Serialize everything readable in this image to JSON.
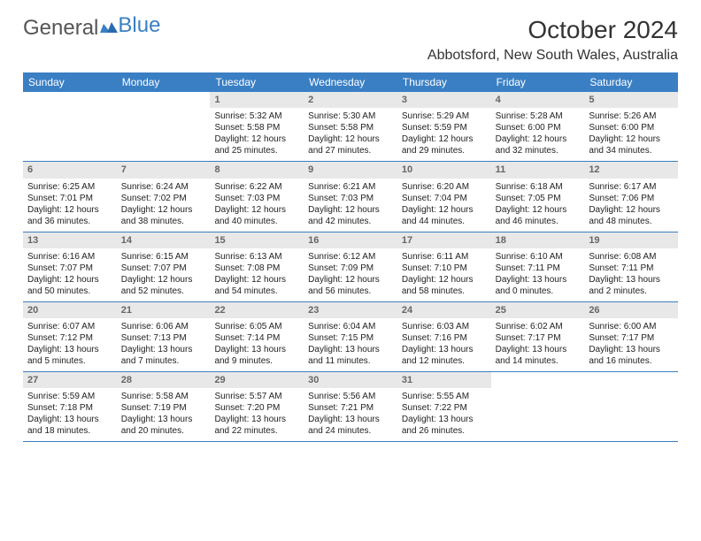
{
  "logo": {
    "text1": "General",
    "text2": "Blue"
  },
  "title": "October 2024",
  "location": "Abbotsford, New South Wales, Australia",
  "colors": {
    "header_bg": "#3a7fc4",
    "header_text": "#ffffff",
    "daynum_bg": "#e8e8e8",
    "daynum_text": "#666666",
    "body_text": "#222222",
    "border": "#3a7fc4",
    "logo_gray": "#555555",
    "logo_blue": "#3a7fc4"
  },
  "dow": [
    "Sunday",
    "Monday",
    "Tuesday",
    "Wednesday",
    "Thursday",
    "Friday",
    "Saturday"
  ],
  "weeks": [
    [
      {
        "n": "",
        "l1": "",
        "l2": "",
        "l3": "",
        "l4": ""
      },
      {
        "n": "",
        "l1": "",
        "l2": "",
        "l3": "",
        "l4": ""
      },
      {
        "n": "1",
        "l1": "Sunrise: 5:32 AM",
        "l2": "Sunset: 5:58 PM",
        "l3": "Daylight: 12 hours",
        "l4": "and 25 minutes."
      },
      {
        "n": "2",
        "l1": "Sunrise: 5:30 AM",
        "l2": "Sunset: 5:58 PM",
        "l3": "Daylight: 12 hours",
        "l4": "and 27 minutes."
      },
      {
        "n": "3",
        "l1": "Sunrise: 5:29 AM",
        "l2": "Sunset: 5:59 PM",
        "l3": "Daylight: 12 hours",
        "l4": "and 29 minutes."
      },
      {
        "n": "4",
        "l1": "Sunrise: 5:28 AM",
        "l2": "Sunset: 6:00 PM",
        "l3": "Daylight: 12 hours",
        "l4": "and 32 minutes."
      },
      {
        "n": "5",
        "l1": "Sunrise: 5:26 AM",
        "l2": "Sunset: 6:00 PM",
        "l3": "Daylight: 12 hours",
        "l4": "and 34 minutes."
      }
    ],
    [
      {
        "n": "6",
        "l1": "Sunrise: 6:25 AM",
        "l2": "Sunset: 7:01 PM",
        "l3": "Daylight: 12 hours",
        "l4": "and 36 minutes."
      },
      {
        "n": "7",
        "l1": "Sunrise: 6:24 AM",
        "l2": "Sunset: 7:02 PM",
        "l3": "Daylight: 12 hours",
        "l4": "and 38 minutes."
      },
      {
        "n": "8",
        "l1": "Sunrise: 6:22 AM",
        "l2": "Sunset: 7:03 PM",
        "l3": "Daylight: 12 hours",
        "l4": "and 40 minutes."
      },
      {
        "n": "9",
        "l1": "Sunrise: 6:21 AM",
        "l2": "Sunset: 7:03 PM",
        "l3": "Daylight: 12 hours",
        "l4": "and 42 minutes."
      },
      {
        "n": "10",
        "l1": "Sunrise: 6:20 AM",
        "l2": "Sunset: 7:04 PM",
        "l3": "Daylight: 12 hours",
        "l4": "and 44 minutes."
      },
      {
        "n": "11",
        "l1": "Sunrise: 6:18 AM",
        "l2": "Sunset: 7:05 PM",
        "l3": "Daylight: 12 hours",
        "l4": "and 46 minutes."
      },
      {
        "n": "12",
        "l1": "Sunrise: 6:17 AM",
        "l2": "Sunset: 7:06 PM",
        "l3": "Daylight: 12 hours",
        "l4": "and 48 minutes."
      }
    ],
    [
      {
        "n": "13",
        "l1": "Sunrise: 6:16 AM",
        "l2": "Sunset: 7:07 PM",
        "l3": "Daylight: 12 hours",
        "l4": "and 50 minutes."
      },
      {
        "n": "14",
        "l1": "Sunrise: 6:15 AM",
        "l2": "Sunset: 7:07 PM",
        "l3": "Daylight: 12 hours",
        "l4": "and 52 minutes."
      },
      {
        "n": "15",
        "l1": "Sunrise: 6:13 AM",
        "l2": "Sunset: 7:08 PM",
        "l3": "Daylight: 12 hours",
        "l4": "and 54 minutes."
      },
      {
        "n": "16",
        "l1": "Sunrise: 6:12 AM",
        "l2": "Sunset: 7:09 PM",
        "l3": "Daylight: 12 hours",
        "l4": "and 56 minutes."
      },
      {
        "n": "17",
        "l1": "Sunrise: 6:11 AM",
        "l2": "Sunset: 7:10 PM",
        "l3": "Daylight: 12 hours",
        "l4": "and 58 minutes."
      },
      {
        "n": "18",
        "l1": "Sunrise: 6:10 AM",
        "l2": "Sunset: 7:11 PM",
        "l3": "Daylight: 13 hours",
        "l4": "and 0 minutes."
      },
      {
        "n": "19",
        "l1": "Sunrise: 6:08 AM",
        "l2": "Sunset: 7:11 PM",
        "l3": "Daylight: 13 hours",
        "l4": "and 2 minutes."
      }
    ],
    [
      {
        "n": "20",
        "l1": "Sunrise: 6:07 AM",
        "l2": "Sunset: 7:12 PM",
        "l3": "Daylight: 13 hours",
        "l4": "and 5 minutes."
      },
      {
        "n": "21",
        "l1": "Sunrise: 6:06 AM",
        "l2": "Sunset: 7:13 PM",
        "l3": "Daylight: 13 hours",
        "l4": "and 7 minutes."
      },
      {
        "n": "22",
        "l1": "Sunrise: 6:05 AM",
        "l2": "Sunset: 7:14 PM",
        "l3": "Daylight: 13 hours",
        "l4": "and 9 minutes."
      },
      {
        "n": "23",
        "l1": "Sunrise: 6:04 AM",
        "l2": "Sunset: 7:15 PM",
        "l3": "Daylight: 13 hours",
        "l4": "and 11 minutes."
      },
      {
        "n": "24",
        "l1": "Sunrise: 6:03 AM",
        "l2": "Sunset: 7:16 PM",
        "l3": "Daylight: 13 hours",
        "l4": "and 12 minutes."
      },
      {
        "n": "25",
        "l1": "Sunrise: 6:02 AM",
        "l2": "Sunset: 7:17 PM",
        "l3": "Daylight: 13 hours",
        "l4": "and 14 minutes."
      },
      {
        "n": "26",
        "l1": "Sunrise: 6:00 AM",
        "l2": "Sunset: 7:17 PM",
        "l3": "Daylight: 13 hours",
        "l4": "and 16 minutes."
      }
    ],
    [
      {
        "n": "27",
        "l1": "Sunrise: 5:59 AM",
        "l2": "Sunset: 7:18 PM",
        "l3": "Daylight: 13 hours",
        "l4": "and 18 minutes."
      },
      {
        "n": "28",
        "l1": "Sunrise: 5:58 AM",
        "l2": "Sunset: 7:19 PM",
        "l3": "Daylight: 13 hours",
        "l4": "and 20 minutes."
      },
      {
        "n": "29",
        "l1": "Sunrise: 5:57 AM",
        "l2": "Sunset: 7:20 PM",
        "l3": "Daylight: 13 hours",
        "l4": "and 22 minutes."
      },
      {
        "n": "30",
        "l1": "Sunrise: 5:56 AM",
        "l2": "Sunset: 7:21 PM",
        "l3": "Daylight: 13 hours",
        "l4": "and 24 minutes."
      },
      {
        "n": "31",
        "l1": "Sunrise: 5:55 AM",
        "l2": "Sunset: 7:22 PM",
        "l3": "Daylight: 13 hours",
        "l4": "and 26 minutes."
      },
      {
        "n": "",
        "l1": "",
        "l2": "",
        "l3": "",
        "l4": ""
      },
      {
        "n": "",
        "l1": "",
        "l2": "",
        "l3": "",
        "l4": ""
      }
    ]
  ]
}
